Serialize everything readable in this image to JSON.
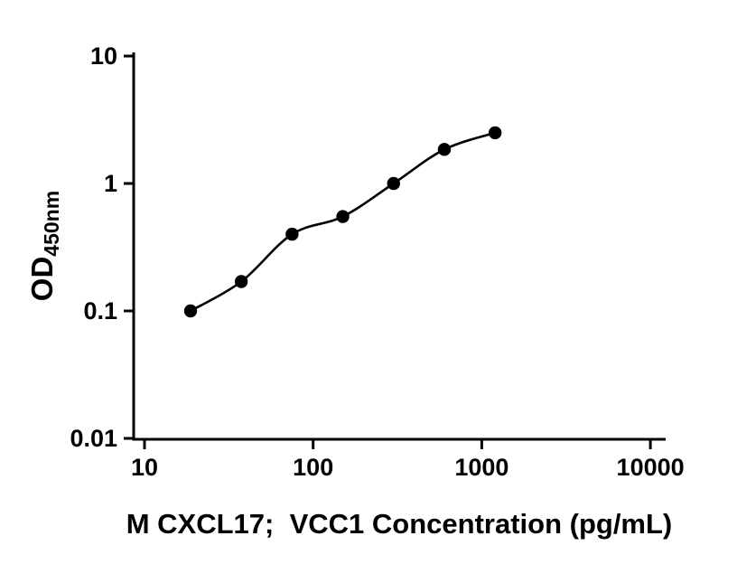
{
  "page": {
    "background": "#ffffff"
  },
  "chart_data": {
    "type": "scatter",
    "curve": "smooth",
    "x": [
      18.75,
      37.5,
      75,
      150,
      300,
      600,
      1200
    ],
    "y": [
      0.1,
      0.17,
      0.4,
      0.55,
      1.0,
      1.85,
      2.5
    ],
    "title": "",
    "xlabel": "M CXCL17;  VCC1 Concentration (pg/mL)",
    "ylabel_main": "OD",
    "ylabel_sub": "450nm",
    "xscale": "log",
    "yscale": "log",
    "xlim": [
      10,
      10000
    ],
    "ylim": [
      0.01,
      10
    ],
    "x_ticks": [
      10,
      100,
      1000,
      10000
    ],
    "x_tick_labels": [
      "10",
      "100",
      "1000",
      "10000"
    ],
    "y_ticks": [
      0.01,
      0.1,
      1,
      10
    ],
    "y_tick_labels": [
      "0.01",
      "0.1",
      "1",
      "10"
    ],
    "grid": false,
    "legend": null,
    "marker_color": "#000000",
    "line_color": "#000000",
    "axis_color": "#000000"
  }
}
